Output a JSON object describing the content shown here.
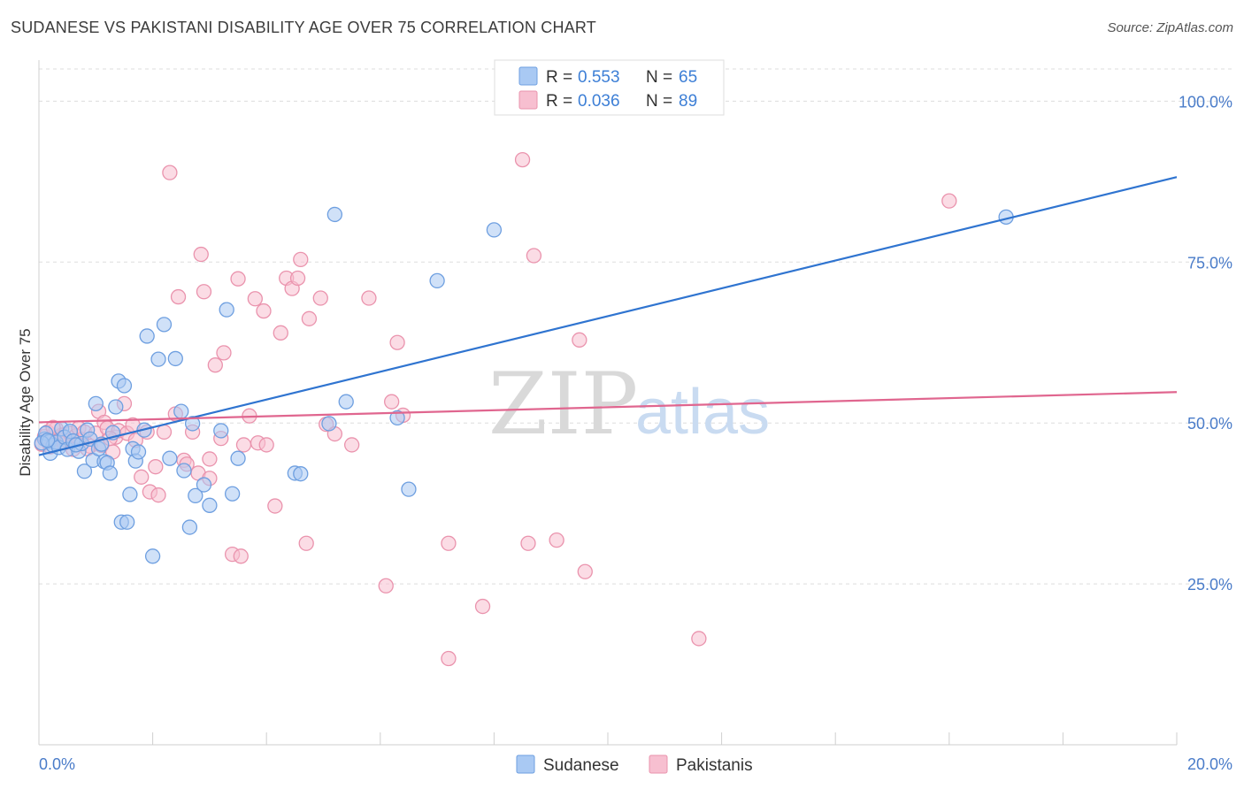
{
  "title": "SUDANESE VS PAKISTANI DISABILITY AGE OVER 75 CORRELATION CHART",
  "source": "Source: ZipAtlas.com",
  "watermark": {
    "zip": "ZIP",
    "atlas": "atlas"
  },
  "colors": {
    "sudanese_fill": "#a9c9f3",
    "sudanese_stroke": "#6e9fe0",
    "sudanese_line": "#2f74d0",
    "pakistani_fill": "#f7bfd0",
    "pakistani_stroke": "#ea93ad",
    "pakistani_line": "#e0668f",
    "tick_text": "#4a7cc9",
    "grid": "#dddddd"
  },
  "legend_top": [
    {
      "r_label": "R =",
      "r_value": "0.553",
      "n_label": "N =",
      "n_value": "65"
    },
    {
      "r_label": "R =",
      "r_value": "0.036",
      "n_label": "N =",
      "n_value": "89"
    }
  ],
  "legend_bottom": [
    "Sudanese",
    "Pakistanis"
  ],
  "chart_data": {
    "type": "scatter",
    "title": "SUDANESE VS PAKISTANI DISABILITY AGE OVER 75 CORRELATION CHART",
    "xlabel": "",
    "ylabel": "Disability Age Over 75",
    "xlim": [
      0,
      20
    ],
    "ylim": [
      0,
      105
    ],
    "x_tick_labels": [
      "0.0%",
      "20.0%"
    ],
    "y_ticks": [
      25,
      50,
      75,
      100
    ],
    "y_tick_labels": [
      "25.0%",
      "50.0%",
      "75.0%",
      "100.0%"
    ],
    "grid": true,
    "legend_position": "top-center",
    "series": [
      {
        "name": "Sudanese",
        "r": 0.553,
        "n": 65,
        "trend": {
          "x": [
            0,
            20
          ],
          "y": [
            45.0,
            88.2
          ]
        },
        "points": [
          [
            0.1,
            47.5
          ],
          [
            0.12,
            48.4
          ],
          [
            0.18,
            47.1
          ],
          [
            0.2,
            45.3
          ],
          [
            0.25,
            46.5
          ],
          [
            0.3,
            47.0
          ],
          [
            0.35,
            46.2
          ],
          [
            0.4,
            49.1
          ],
          [
            0.45,
            47.8
          ],
          [
            0.5,
            45.9
          ],
          [
            0.55,
            48.7
          ],
          [
            0.6,
            47.2
          ],
          [
            0.7,
            45.6
          ],
          [
            0.75,
            46.8
          ],
          [
            0.8,
            42.5
          ],
          [
            0.85,
            48.9
          ],
          [
            0.9,
            47.5
          ],
          [
            0.95,
            44.2
          ],
          [
            1.0,
            53.0
          ],
          [
            1.05,
            46.0
          ],
          [
            1.1,
            46.7
          ],
          [
            1.15,
            44.0
          ],
          [
            1.2,
            43.8
          ],
          [
            1.25,
            42.2
          ],
          [
            1.3,
            48.5
          ],
          [
            1.35,
            52.5
          ],
          [
            1.4,
            56.5
          ],
          [
            1.5,
            55.8
          ],
          [
            1.6,
            38.9
          ],
          [
            1.65,
            46.0
          ],
          [
            1.7,
            44.1
          ],
          [
            1.85,
            48.9
          ],
          [
            1.9,
            63.5
          ],
          [
            2.0,
            29.3
          ],
          [
            2.1,
            59.9
          ],
          [
            2.2,
            65.3
          ],
          [
            2.3,
            44.5
          ],
          [
            2.5,
            51.8
          ],
          [
            2.55,
            42.6
          ],
          [
            2.65,
            33.8
          ],
          [
            2.7,
            49.9
          ],
          [
            2.75,
            38.7
          ],
          [
            2.9,
            40.4
          ],
          [
            3.0,
            37.2
          ],
          [
            3.2,
            48.8
          ],
          [
            3.3,
            67.6
          ],
          [
            3.4,
            39.0
          ],
          [
            3.5,
            44.5
          ],
          [
            4.5,
            42.2
          ],
          [
            4.6,
            42.1
          ],
          [
            5.1,
            49.9
          ],
          [
            5.2,
            82.4
          ],
          [
            5.4,
            53.3
          ],
          [
            6.3,
            50.8
          ],
          [
            6.5,
            39.7
          ],
          [
            7.0,
            72.1
          ],
          [
            8.0,
            80.0
          ],
          [
            17.0,
            82.0
          ],
          [
            1.45,
            34.6
          ],
          [
            1.55,
            34.6
          ],
          [
            0.65,
            46.6
          ],
          [
            0.05,
            46.9
          ],
          [
            0.15,
            47.3
          ],
          [
            2.4,
            60.0
          ],
          [
            1.75,
            45.5
          ]
        ]
      },
      {
        "name": "Pakistanis",
        "r": 0.036,
        "n": 89,
        "trend": {
          "x": [
            0,
            20
          ],
          "y": [
            50.1,
            54.8
          ]
        },
        "points": [
          [
            0.05,
            46.7
          ],
          [
            0.1,
            47.9
          ],
          [
            0.15,
            48.6
          ],
          [
            0.2,
            46.3
          ],
          [
            0.25,
            47.4
          ],
          [
            0.3,
            49.1
          ],
          [
            0.35,
            47.8
          ],
          [
            0.4,
            48.1
          ],
          [
            0.45,
            46.9
          ],
          [
            0.5,
            47.3
          ],
          [
            0.55,
            48.4
          ],
          [
            0.6,
            45.9
          ],
          [
            0.65,
            48.0
          ],
          [
            0.7,
            49.2
          ],
          [
            0.75,
            47.4
          ],
          [
            0.8,
            48.6
          ],
          [
            0.9,
            46.4
          ],
          [
            1.0,
            48.4
          ],
          [
            1.05,
            51.8
          ],
          [
            1.1,
            46.5
          ],
          [
            1.15,
            50.1
          ],
          [
            1.2,
            49.2
          ],
          [
            1.3,
            45.5
          ],
          [
            1.35,
            47.8
          ],
          [
            1.4,
            48.8
          ],
          [
            1.5,
            53.0
          ],
          [
            1.55,
            48.4
          ],
          [
            1.65,
            49.7
          ],
          [
            1.7,
            47.3
          ],
          [
            1.8,
            41.6
          ],
          [
            1.9,
            48.6
          ],
          [
            1.95,
            39.3
          ],
          [
            2.05,
            43.2
          ],
          [
            2.1,
            38.8
          ],
          [
            2.2,
            48.6
          ],
          [
            2.3,
            88.9
          ],
          [
            2.4,
            51.4
          ],
          [
            2.45,
            69.6
          ],
          [
            2.55,
            44.2
          ],
          [
            2.6,
            43.6
          ],
          [
            2.7,
            48.6
          ],
          [
            2.8,
            42.2
          ],
          [
            2.85,
            76.2
          ],
          [
            2.9,
            70.4
          ],
          [
            3.0,
            41.4
          ],
          [
            3.1,
            59.0
          ],
          [
            3.2,
            47.6
          ],
          [
            3.25,
            60.9
          ],
          [
            3.4,
            29.6
          ],
          [
            3.5,
            72.4
          ],
          [
            3.55,
            29.3
          ],
          [
            3.6,
            46.6
          ],
          [
            3.7,
            51.1
          ],
          [
            3.8,
            69.3
          ],
          [
            3.85,
            46.9
          ],
          [
            3.95,
            67.4
          ],
          [
            4.15,
            37.1
          ],
          [
            4.25,
            64.0
          ],
          [
            4.35,
            72.5
          ],
          [
            4.45,
            70.9
          ],
          [
            4.55,
            72.5
          ],
          [
            4.6,
            75.4
          ],
          [
            4.7,
            31.3
          ],
          [
            4.75,
            66.2
          ],
          [
            4.95,
            69.4
          ],
          [
            5.05,
            49.8
          ],
          [
            5.2,
            48.3
          ],
          [
            5.5,
            46.6
          ],
          [
            5.8,
            69.4
          ],
          [
            6.1,
            24.7
          ],
          [
            6.2,
            53.3
          ],
          [
            6.3,
            62.5
          ],
          [
            6.4,
            51.2
          ],
          [
            7.2,
            13.4
          ],
          [
            7.2,
            31.3
          ],
          [
            7.8,
            21.5
          ],
          [
            8.5,
            90.9
          ],
          [
            8.6,
            31.3
          ],
          [
            8.7,
            76.0
          ],
          [
            9.1,
            31.8
          ],
          [
            9.5,
            62.9
          ],
          [
            9.6,
            26.9
          ],
          [
            11.6,
            16.5
          ],
          [
            16.0,
            84.5
          ],
          [
            0.25,
            49.3
          ],
          [
            0.85,
            46.0
          ],
          [
            1.25,
            47.6
          ],
          [
            3.0,
            44.4
          ],
          [
            4.0,
            46.6
          ]
        ]
      }
    ]
  }
}
